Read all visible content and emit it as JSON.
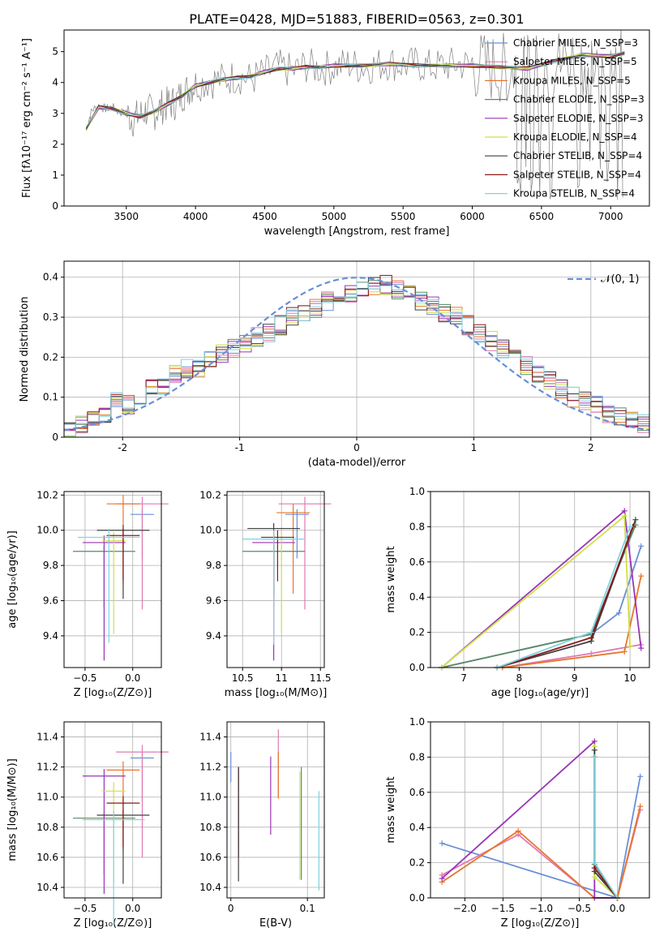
{
  "figure_title": "PLATE=0428, MJD=51883, FIBERID=0563, z=0.301",
  "chart_data": [
    {
      "id": "spectrum",
      "type": "line",
      "xlabel": "wavelength [Angstrom, rest frame]",
      "ylabel": "Flux [fλ10⁻¹⁷ erg cm⁻² s⁻¹ A⁻¹]",
      "xlim": [
        3050,
        7280
      ],
      "ylim": [
        0,
        5.7
      ],
      "xticks": [
        3500,
        4000,
        4500,
        5000,
        5500,
        6000,
        6500,
        7000
      ],
      "yticks": [
        0,
        1,
        2,
        3,
        4,
        5
      ],
      "legend": "top-right",
      "data_line": {
        "color": "#808080",
        "x": [
          3210,
          3250,
          3300,
          3350,
          3400,
          3450,
          3500,
          3550,
          3600,
          3650,
          3700,
          3750,
          3800,
          3850,
          3900,
          3950,
          4000,
          4100,
          4200,
          4300,
          4400,
          4500,
          4600,
          4700,
          4800,
          4900,
          5000,
          5100,
          5200,
          5300,
          5400,
          5500,
          5600,
          5700,
          5800,
          5900,
          6000,
          6100,
          6200,
          6300,
          6400,
          6500,
          6600,
          6700,
          6800,
          6900,
          7000,
          7100
        ],
        "y": [
          2.5,
          3.1,
          3.25,
          3.15,
          3.2,
          3.05,
          3.0,
          2.8,
          2.95,
          3.1,
          3.0,
          3.2,
          3.3,
          3.35,
          3.6,
          3.8,
          3.95,
          4.05,
          4.1,
          4.2,
          4.1,
          4.3,
          4.5,
          4.35,
          4.55,
          4.45,
          4.5,
          4.6,
          4.5,
          4.55,
          4.65,
          4.55,
          4.6,
          4.5,
          4.55,
          4.6,
          4.55,
          4.5,
          4.45,
          4.5,
          4.35,
          4.5,
          4.6,
          4.8,
          4.7,
          4.6,
          4.75,
          4.95
        ]
      },
      "series": [
        {
          "name": "Chabrier MILES, N_SSP=3",
          "color": "#6a8fd6"
        },
        {
          "name": "Salpeter MILES, N_SSP=5",
          "color": "#e07ab0"
        },
        {
          "name": "Kroupa MILES, N_SSP=5",
          "color": "#e8762a"
        },
        {
          "name": "Chabrier ELODIE, N_SSP=3",
          "color": "#5a8a63"
        },
        {
          "name": "Salpeter ELODIE, N_SSP=3",
          "color": "#9a34b5"
        },
        {
          "name": "Kroupa ELODIE, N_SSP=4",
          "color": "#cfe04a"
        },
        {
          "name": "Chabrier STELIB, N_SSP=4",
          "color": "#404040"
        },
        {
          "name": "Salpeter STELIB, N_SSP=4",
          "color": "#8b1a1a"
        },
        {
          "name": "Kroupa STELIB, N_SSP=4",
          "color": "#7fd3e0"
        }
      ],
      "model_x": [
        3210,
        3300,
        3400,
        3500,
        3600,
        3700,
        3800,
        3900,
        4000,
        4100,
        4200,
        4300,
        4400,
        4500,
        4600,
        4700,
        4800,
        4900,
        5000,
        5200,
        5400,
        5600,
        5800,
        6000,
        6200,
        6400,
        6600,
        6800,
        7000,
        7100
      ],
      "model_y": [
        2.5,
        3.2,
        3.15,
        3.0,
        2.9,
        3.05,
        3.3,
        3.55,
        3.9,
        4.0,
        4.1,
        4.15,
        4.2,
        4.35,
        4.45,
        4.45,
        4.5,
        4.5,
        4.55,
        4.55,
        4.6,
        4.55,
        4.55,
        4.55,
        4.5,
        4.45,
        4.7,
        4.9,
        4.85,
        4.95
      ]
    },
    {
      "id": "residuals",
      "type": "line",
      "xlabel": "(data-model)/error",
      "ylabel": "Normed distribution",
      "xlim": [
        -2.5,
        2.5
      ],
      "ylim": [
        0,
        0.44
      ],
      "xticks": [
        -2,
        -1,
        0,
        1,
        2
      ],
      "yticks": [
        0.0,
        0.1,
        0.2,
        0.3,
        0.4
      ],
      "legend": "top-right",
      "normal_label": "𝒩(0, 1)",
      "normal_color": "#6a8fd6",
      "hist_edges_start": -2.5,
      "hist_bin_width": 0.1,
      "hist_values": [
        0.025,
        0.03,
        0.04,
        0.06,
        0.09,
        0.08,
        0.1,
        0.12,
        0.13,
        0.16,
        0.17,
        0.17,
        0.19,
        0.21,
        0.22,
        0.23,
        0.25,
        0.26,
        0.28,
        0.3,
        0.31,
        0.32,
        0.34,
        0.36,
        0.36,
        0.37,
        0.38,
        0.38,
        0.37,
        0.36,
        0.34,
        0.33,
        0.31,
        0.3,
        0.28,
        0.26,
        0.24,
        0.22,
        0.2,
        0.18,
        0.16,
        0.14,
        0.12,
        0.1,
        0.09,
        0.08,
        0.06,
        0.05,
        0.04,
        0.035
      ]
    },
    {
      "id": "age-vs-Z",
      "type": "scatter",
      "xlabel": "Z [log₁₀(Z/Z⊙)]",
      "ylabel": "age  [log₁₀(age/yr)]",
      "xlim": [
        -0.72,
        0.3
      ],
      "ylim": [
        9.22,
        10.22
      ],
      "xticks": [
        -0.5,
        0.0
      ],
      "xticklabels": [
        "−0.5",
        "0.0"
      ],
      "yticks": [
        9.4,
        9.6,
        9.8,
        10.0,
        10.2
      ],
      "points": [
        {
          "x": 0.1,
          "y": 10.09,
          "color": "#6a8fd6"
        },
        {
          "x": 0.1,
          "y": 10.15,
          "color": "#e07ab0"
        },
        {
          "x": -0.1,
          "y": 10.15,
          "color": "#e8762a"
        },
        {
          "x": -0.3,
          "y": 9.88,
          "color": "#5a8a63"
        },
        {
          "x": -0.3,
          "y": 9.93,
          "color": "#9a34b5"
        },
        {
          "x": -0.2,
          "y": 9.94,
          "color": "#cfe04a"
        },
        {
          "x": -0.1,
          "y": 10.0,
          "color": "#404040"
        },
        {
          "x": -0.1,
          "y": 9.97,
          "color": "#8b1a1a"
        },
        {
          "x": -0.25,
          "y": 9.96,
          "color": "#7fd3e0"
        }
      ]
    },
    {
      "id": "age-vs-mass",
      "type": "scatter",
      "xlabel": "mass [log₁₀(M/M⊙)]",
      "ylabel": "",
      "xlim": [
        10.3,
        11.55
      ],
      "ylim": [
        9.22,
        10.22
      ],
      "xticks": [
        10.5,
        11.0,
        11.5
      ],
      "yticks": [
        9.4,
        9.6,
        9.8,
        10.0,
        10.2
      ],
      "points": [
        {
          "x": 11.2,
          "y": 10.09,
          "color": "#6a8fd6"
        },
        {
          "x": 11.3,
          "y": 10.15,
          "color": "#e07ab0"
        },
        {
          "x": 11.15,
          "y": 10.1,
          "color": "#e8762a"
        },
        {
          "x": 10.9,
          "y": 9.88,
          "color": "#5a8a63"
        },
        {
          "x": 10.9,
          "y": 9.93,
          "color": "#9a34b5"
        },
        {
          "x": 11.0,
          "y": 9.95,
          "color": "#cfe04a"
        },
        {
          "x": 10.9,
          "y": 10.01,
          "color": "#404040"
        },
        {
          "x": 10.95,
          "y": 9.96,
          "color": "#8b1a1a"
        },
        {
          "x": 10.9,
          "y": 9.95,
          "color": "#7fd3e0"
        }
      ]
    },
    {
      "id": "weight-vs-age",
      "type": "line",
      "xlabel": "age  [log₁₀(age/yr)]",
      "ylabel": "mass weight",
      "xlim": [
        6.4,
        10.35
      ],
      "ylim": [
        0,
        1.0
      ],
      "xticks": [
        7,
        8,
        9,
        10
      ],
      "yticks": [
        0.0,
        0.2,
        0.4,
        0.6,
        0.8,
        1.0
      ],
      "series": [
        {
          "color": "#6a8fd6",
          "x": [
            6.6,
            9.3,
            9.8,
            10.2
          ],
          "y": [
            0,
            0.19,
            0.31,
            0.69
          ]
        },
        {
          "color": "#e07ab0",
          "x": [
            7.7,
            9.3,
            10.2
          ],
          "y": [
            0,
            0.08,
            0.13
          ]
        },
        {
          "color": "#e8762a",
          "x": [
            7.7,
            9.9,
            10.2
          ],
          "y": [
            0,
            0.09,
            0.52
          ]
        },
        {
          "color": "#5a8a63",
          "x": [
            6.6,
            9.3,
            10.1
          ],
          "y": [
            0,
            0.19,
            0.81
          ]
        },
        {
          "color": "#9a34b5",
          "x": [
            6.6,
            9.9,
            10.2
          ],
          "y": [
            0,
            0.89,
            0.11
          ]
        },
        {
          "color": "#cfe04a",
          "x": [
            6.6,
            9.9,
            10.0
          ],
          "y": [
            0,
            0.86,
            0.12
          ]
        },
        {
          "color": "#404040",
          "x": [
            7.6,
            9.3,
            10.1
          ],
          "y": [
            0,
            0.15,
            0.84
          ]
        },
        {
          "color": "#8b1a1a",
          "x": [
            7.6,
            9.3,
            10.05
          ],
          "y": [
            0,
            0.17,
            0.8
          ]
        },
        {
          "color": "#7fd3e0",
          "x": [
            7.6,
            9.3,
            10.0
          ],
          "y": [
            0,
            0.2,
            0.8
          ]
        }
      ]
    },
    {
      "id": "mass-vs-Z",
      "type": "scatter",
      "xlabel": "Z [log₁₀(Z/Z⊙)]",
      "ylabel": "mass [log₁₀(M/M⊙)]",
      "xlim": [
        -0.72,
        0.3
      ],
      "ylim": [
        10.33,
        11.5
      ],
      "xticks": [
        -0.5,
        0.0
      ],
      "xticklabels": [
        "−0.5",
        "0.0"
      ],
      "yticks": [
        10.4,
        10.6,
        10.8,
        11.0,
        11.2,
        11.4
      ],
      "points": [
        {
          "x": 0.1,
          "y": 11.26,
          "color": "#6a8fd6"
        },
        {
          "x": 0.1,
          "y": 11.3,
          "color": "#e07ab0"
        },
        {
          "x": -0.1,
          "y": 11.18,
          "color": "#e8762a"
        },
        {
          "x": -0.3,
          "y": 10.86,
          "color": "#5a8a63"
        },
        {
          "x": -0.3,
          "y": 11.14,
          "color": "#9a34b5"
        },
        {
          "x": -0.2,
          "y": 11.04,
          "color": "#cfe04a"
        },
        {
          "x": -0.1,
          "y": 10.88,
          "color": "#404040"
        },
        {
          "x": -0.1,
          "y": 10.96,
          "color": "#8b1a1a"
        },
        {
          "x": -0.2,
          "y": 10.85,
          "color": "#7fd3e0"
        }
      ]
    },
    {
      "id": "mass-vs-ebv",
      "type": "scatter",
      "xlabel": "E(B-V)",
      "ylabel": "",
      "xlim": [
        -0.005,
        0.122
      ],
      "ylim": [
        10.33,
        11.5
      ],
      "xticks": [
        0.0,
        0.1
      ],
      "yticks": [
        10.4,
        10.6,
        10.8,
        11.0,
        11.2,
        11.4
      ],
      "bars": [
        {
          "x": 0.0,
          "y0": 11.1,
          "y1": 11.3,
          "color": "#6a8fd6"
        },
        {
          "x": 0.01,
          "y0": 10.6,
          "y1": 11.2,
          "color": "#8b1a1a"
        },
        {
          "x": 0.01,
          "y0": 10.44,
          "y1": 11.2,
          "color": "#404040"
        },
        {
          "x": 0.052,
          "y0": 10.75,
          "y1": 11.27,
          "color": "#9a34b5"
        },
        {
          "x": 0.062,
          "y0": 11.0,
          "y1": 11.45,
          "color": "#e07ab0"
        },
        {
          "x": 0.062,
          "y0": 10.99,
          "y1": 11.3,
          "color": "#e8762a"
        },
        {
          "x": 0.09,
          "y0": 10.45,
          "y1": 11.17,
          "color": "#cfe04a"
        },
        {
          "x": 0.092,
          "y0": 10.45,
          "y1": 11.2,
          "color": "#5a8a63"
        },
        {
          "x": 0.115,
          "y0": 10.38,
          "y1": 11.04,
          "color": "#7fd3e0"
        }
      ]
    },
    {
      "id": "weight-vs-Z",
      "type": "line",
      "xlabel": "Z [log₁₀(Z/Z⊙)]",
      "ylabel": "mass weight",
      "xlim": [
        -2.45,
        0.42
      ],
      "ylim": [
        0,
        1.0
      ],
      "xticks": [
        -2.0,
        -1.5,
        -1.0,
        -0.5,
        0.0
      ],
      "xticklabels": [
        "−2.0",
        "−1.5",
        "−1.0",
        "−0.5",
        "0.0"
      ],
      "yticks": [
        0.0,
        0.2,
        0.4,
        0.6,
        0.8,
        1.0
      ],
      "series": [
        {
          "color": "#6a8fd6",
          "x": [
            -2.3,
            0.0,
            0.3
          ],
          "y": [
            0.31,
            0.0,
            0.69
          ]
        },
        {
          "color": "#e07ab0",
          "x": [
            -2.3,
            -1.3,
            -0.3,
            0.0,
            0.3
          ],
          "y": [
            0.13,
            0.36,
            0.0,
            0.0,
            0.5
          ]
        },
        {
          "color": "#e8762a",
          "x": [
            -2.3,
            -1.3,
            -0.3,
            0.0,
            0.3
          ],
          "y": [
            0.09,
            0.38,
            0.0,
            0.0,
            0.52
          ]
        },
        {
          "color": "#5a8a63",
          "x": [
            -0.3,
            -0.3,
            0.0
          ],
          "y": [
            0.8,
            0.19,
            0.0
          ]
        },
        {
          "color": "#9a34b5",
          "x": [
            -2.3,
            -0.3,
            -0.3,
            0.0
          ],
          "y": [
            0.11,
            0.89,
            0.0,
            0.0
          ]
        },
        {
          "color": "#cfe04a",
          "x": [
            -0.3,
            -0.3,
            0.0
          ],
          "y": [
            0.86,
            0.12,
            0.0
          ]
        },
        {
          "color": "#404040",
          "x": [
            -0.3,
            -0.3,
            0.0
          ],
          "y": [
            0.84,
            0.15,
            0.0
          ]
        },
        {
          "color": "#8b1a1a",
          "x": [
            -0.3,
            -0.3,
            0.0
          ],
          "y": [
            0.8,
            0.17,
            0.0
          ]
        },
        {
          "color": "#7fd3e0",
          "x": [
            -0.3,
            -0.3,
            0.0
          ],
          "y": [
            0.8,
            0.2,
            0.0
          ]
        }
      ]
    }
  ]
}
